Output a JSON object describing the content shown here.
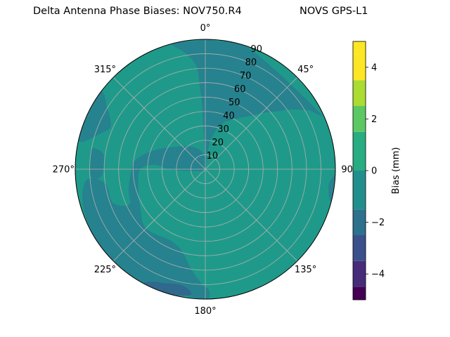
{
  "chart_data": {
    "type": "heatmap",
    "projection": "polar",
    "title_left": "Delta Antenna Phase Biases: NOV750.R4",
    "title_right": "NOVS GPS-L1",
    "angular_ticks": [
      {
        "deg": 0,
        "label": "0°"
      },
      {
        "deg": 45,
        "label": "45°"
      },
      {
        "deg": 90,
        "label": "90"
      },
      {
        "deg": 135,
        "label": "135°"
      },
      {
        "deg": 180,
        "label": "180°"
      },
      {
        "deg": 225,
        "label": "225°"
      },
      {
        "deg": 270,
        "label": "270°"
      },
      {
        "deg": 315,
        "label": "315°"
      }
    ],
    "radial_ticks": [
      10,
      20,
      30,
      40,
      50,
      60,
      70,
      80,
      90
    ],
    "rlim": [
      0,
      90
    ],
    "grid": true,
    "background_level": 0.5,
    "regions": [
      {
        "name": "north-east-band",
        "level": -0.5,
        "points": [
          [
            0,
            0
          ],
          [
            10,
            20
          ],
          [
            20,
            33
          ],
          [
            30,
            40
          ],
          [
            40,
            48
          ],
          [
            45,
            55
          ],
          [
            50,
            62
          ],
          [
            55,
            72
          ],
          [
            60,
            82
          ],
          [
            63,
            88
          ],
          [
            20,
            89
          ],
          [
            5,
            89
          ],
          [
            0,
            90
          ],
          [
            -5,
            89
          ],
          [
            -15,
            90
          ],
          [
            -10,
            82
          ],
          [
            -5,
            72
          ],
          [
            -4,
            60
          ],
          [
            -3,
            45
          ],
          [
            -3,
            30
          ],
          [
            -2,
            15
          ]
        ]
      },
      {
        "name": "south-west-band",
        "level": -0.5,
        "points": [
          [
            0,
            0
          ],
          [
            260,
            8
          ],
          [
            270,
            25
          ],
          [
            275,
            35
          ],
          [
            270,
            45
          ],
          [
            255,
            48
          ],
          [
            240,
            52
          ],
          [
            225,
            58
          ],
          [
            205,
            55
          ],
          [
            195,
            60
          ],
          [
            188,
            70
          ],
          [
            182,
            79
          ],
          [
            178,
            85
          ],
          [
            182,
            90
          ],
          [
            210,
            90
          ],
          [
            225,
            90
          ],
          [
            240,
            90
          ],
          [
            255,
            88
          ],
          [
            265,
            82
          ],
          [
            262,
            70
          ],
          [
            250,
            68
          ],
          [
            245,
            58
          ],
          [
            255,
            55
          ],
          [
            265,
            52
          ],
          [
            275,
            50
          ],
          [
            282,
            45
          ],
          [
            290,
            38
          ],
          [
            300,
            30
          ],
          [
            330,
            18
          ],
          [
            355,
            10
          ]
        ]
      },
      {
        "name": "west-edge-patch",
        "level": -0.5,
        "points": [
          [
            283,
            90
          ],
          [
            290,
            75
          ],
          [
            295,
            72
          ],
          [
            302,
            80
          ],
          [
            306,
            90
          ]
        ]
      },
      {
        "name": "west-inner-spot",
        "level": -0.5,
        "points": [
          [
            276,
            70
          ],
          [
            280,
            74
          ],
          [
            280,
            80
          ],
          [
            272,
            80
          ],
          [
            266,
            79
          ],
          [
            266,
            72
          ]
        ]
      },
      {
        "name": "east-edge-sliver",
        "level": -0.5,
        "points": [
          [
            93,
            89
          ],
          [
            97,
            86
          ],
          [
            103,
            88
          ],
          [
            104,
            90
          ],
          [
            93,
            90
          ]
        ]
      },
      {
        "name": "south-dark-patch",
        "level": -1.5,
        "points": [
          [
            205,
            86
          ],
          [
            200,
            84
          ],
          [
            193,
            82
          ],
          [
            188,
            84
          ],
          [
            187,
            88
          ],
          [
            196,
            90
          ],
          [
            208,
            90
          ]
        ]
      }
    ]
  },
  "colorbar": {
    "label": "Bias (mm)",
    "range": [
      -5,
      5
    ],
    "ticks": [
      {
        "value": 4,
        "label": "4"
      },
      {
        "value": 2,
        "label": "2"
      },
      {
        "value": 0,
        "label": "0"
      },
      {
        "value": -2,
        "label": "−2"
      },
      {
        "value": -4,
        "label": "−4"
      }
    ],
    "bands": [
      {
        "from": -5.0,
        "to": -4.5,
        "color": "#440154"
      },
      {
        "from": -4.5,
        "to": -3.5,
        "color": "#472c7a"
      },
      {
        "from": -3.5,
        "to": -2.5,
        "color": "#3b518b"
      },
      {
        "from": -2.5,
        "to": -1.5,
        "color": "#2c718e"
      },
      {
        "from": -1.5,
        "to": -0.0,
        "color": "#21908d"
      },
      {
        "from": -0.0,
        "to": 1.5,
        "color": "#27ad81"
      },
      {
        "from": 1.5,
        "to": 2.5,
        "color": "#5cc863"
      },
      {
        "from": 2.5,
        "to": 3.5,
        "color": "#aadc32"
      },
      {
        "from": 3.5,
        "to": 4.5,
        "color": "#fde725"
      },
      {
        "from": 4.5,
        "to": 5.0,
        "color": "#fde725"
      }
    ],
    "level_colors": {
      "0.5": "#1f9a8a",
      "-0.5": "#26828e",
      "-1.5": "#31688e"
    }
  }
}
